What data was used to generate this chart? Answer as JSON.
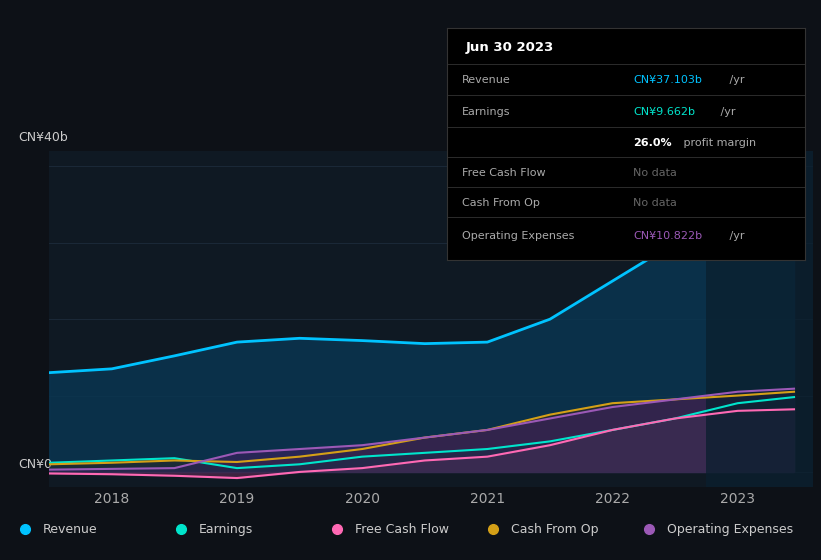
{
  "bg_color": "#0d1117",
  "plot_bg_color": "#0f1923",
  "grid_color": "#1e2d3d",
  "years": [
    2017.5,
    2018.0,
    2018.5,
    2019.0,
    2019.5,
    2020.0,
    2020.5,
    2021.0,
    2021.5,
    2022.0,
    2022.5,
    2023.0,
    2023.45
  ],
  "revenue": [
    13.0,
    13.5,
    15.2,
    17.0,
    17.5,
    17.2,
    16.8,
    17.0,
    20.0,
    25.0,
    30.0,
    36.0,
    37.5
  ],
  "earnings": [
    1.2,
    1.5,
    1.8,
    0.5,
    1.0,
    2.0,
    2.5,
    3.0,
    4.0,
    5.5,
    7.0,
    9.0,
    9.8
  ],
  "free_cash_flow": [
    -0.2,
    -0.3,
    -0.5,
    -0.8,
    0.0,
    0.5,
    1.5,
    2.0,
    3.5,
    5.5,
    7.0,
    8.0,
    8.2
  ],
  "cash_from_op": [
    1.0,
    1.2,
    1.5,
    1.3,
    2.0,
    3.0,
    4.5,
    5.5,
    7.5,
    9.0,
    9.5,
    10.0,
    10.5
  ],
  "operating_expenses": [
    0.3,
    0.4,
    0.5,
    2.5,
    3.0,
    3.5,
    4.5,
    5.5,
    7.0,
    8.5,
    9.5,
    10.5,
    10.9
  ],
  "revenue_color": "#00c3ff",
  "earnings_color": "#00e5cc",
  "free_cash_flow_color": "#ff69b4",
  "cash_from_op_color": "#d4a017",
  "operating_expenses_color": "#9b59b6",
  "fill_revenue_color": "#0a3550",
  "fill_earnings_color": "#0a3045",
  "fill_fcf_color": "#6b2d5e",
  "fill_cashop_color": "#2a2a2a",
  "fill_opex_color": "#3d2060",
  "ylabel_top": "CN¥40b",
  "ylabel_bottom": "CN¥0",
  "xlabel_years": [
    "2018",
    "2019",
    "2020",
    "2021",
    "2022",
    "2023"
  ],
  "x_tick_positions": [
    2018.0,
    2019.0,
    2020.0,
    2021.0,
    2022.0,
    2023.0
  ],
  "xlim": [
    2017.5,
    2023.6
  ],
  "ylim": [
    -2,
    42
  ],
  "highlight_x_start": 2022.75,
  "highlight_color": "#0a1f2e",
  "tooltip_title": "Jun 30 2023",
  "tooltip_rows": [
    {
      "label": "Revenue",
      "value_colored": "CN¥37.103b",
      "value_plain": " /yr",
      "value_color": "#00c3ff",
      "bold": false
    },
    {
      "label": "Earnings",
      "value_colored": "CN¥9.662b",
      "value_plain": " /yr",
      "value_color": "#00e5cc",
      "bold": false
    },
    {
      "label": "",
      "value_colored": "26.0%",
      "value_plain": " profit margin",
      "value_color": "#ffffff",
      "bold": true
    },
    {
      "label": "Free Cash Flow",
      "value_colored": "No data",
      "value_plain": "",
      "value_color": "#666666",
      "bold": false
    },
    {
      "label": "Cash From Op",
      "value_colored": "No data",
      "value_plain": "",
      "value_color": "#666666",
      "bold": false
    },
    {
      "label": "Operating Expenses",
      "value_colored": "CN¥10.822b",
      "value_plain": " /yr",
      "value_color": "#9b59b6",
      "bold": false
    }
  ],
  "legend_entries": [
    {
      "label": "Revenue",
      "color": "#00c3ff"
    },
    {
      "label": "Earnings",
      "color": "#00e5cc"
    },
    {
      "label": "Free Cash Flow",
      "color": "#ff69b4"
    },
    {
      "label": "Cash From Op",
      "color": "#d4a017"
    },
    {
      "label": "Operating Expenses",
      "color": "#9b59b6"
    }
  ]
}
